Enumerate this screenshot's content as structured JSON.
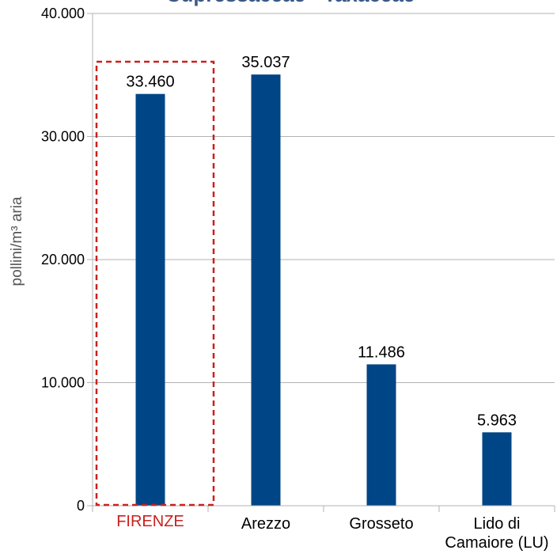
{
  "chart_data": {
    "type": "bar",
    "title": "Cupressaceae - Taxaceae",
    "ylabel": "pollini/m³ aria",
    "xlabel": "",
    "categories": [
      "FIRENZE",
      "Arezzo",
      "Grosseto",
      "Lido di Camaiore (LU)"
    ],
    "category_lines": [
      [
        "FIRENZE"
      ],
      [
        "Arezzo"
      ],
      [
        "Grosseto"
      ],
      [
        "Lido di",
        "Camaiore (LU)"
      ]
    ],
    "values": [
      33460,
      35037,
      11486,
      5963
    ],
    "data_labels": [
      "33.460",
      "35.037",
      "11.486",
      "5.963"
    ],
    "ylim": [
      0,
      40000
    ],
    "y_ticks": [
      0,
      10000,
      20000,
      30000,
      40000
    ],
    "y_tick_labels": [
      "0",
      "10.000",
      "20.000",
      "30.000",
      "40.000"
    ],
    "grid": true,
    "highlight_category": "FIRENZE"
  },
  "colors": {
    "bar": "#004586",
    "grid": "#b3b3b3",
    "axis": "#b3b3b3",
    "highlight": "#c9211e",
    "title": "#3b5a86"
  }
}
